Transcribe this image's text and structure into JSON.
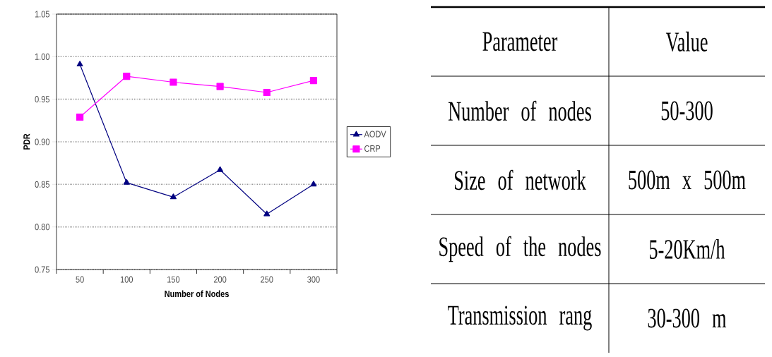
{
  "chart_data": [
    {
      "type": "line",
      "xlabel": "Number of Nodes",
      "ylabel": "PDR",
      "categories": [
        "50",
        "100",
        "150",
        "200",
        "250",
        "300"
      ],
      "series": [
        {
          "name": "AODV",
          "color": "#000080",
          "marker": "triangle",
          "values": [
            0.991,
            0.852,
            0.835,
            0.867,
            0.815,
            0.85
          ]
        },
        {
          "name": "CRP",
          "color": "#ff00ff",
          "marker": "square",
          "values": [
            0.929,
            0.977,
            0.97,
            0.965,
            0.958,
            0.972
          ]
        }
      ],
      "ylim": [
        0.75,
        1.05
      ],
      "yticks": [
        0.75,
        {
          "value": 0.8,
          "label": "0.80"
        },
        0.85,
        {
          "value": 0.9,
          "label": "0.90"
        },
        0.95,
        {
          "value": 1.0,
          "label": "1.00"
        },
        1.05
      ],
      "grid": "y",
      "legend": "right",
      "line_style": "solid"
    },
    {
      "type": "other",
      "annotations": [
        "Parameter",
        "Value",
        "Number of nodes",
        "50-300",
        "Size of network",
        "500m x 500m",
        "Speed of the nodes",
        "5-20Km/h",
        "Transmission rang",
        "30-300 m"
      ]
    }
  ]
}
